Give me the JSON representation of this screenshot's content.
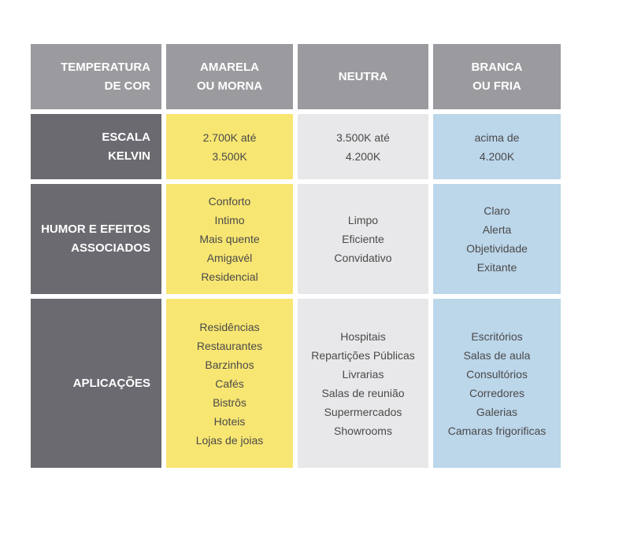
{
  "header": {
    "col0": [
      "TEMPERATURA",
      "DE COR"
    ],
    "col1": [
      "AMARELA",
      "OU MORNA"
    ],
    "col2": [
      "NEUTRA"
    ],
    "col3": [
      "BRANCA",
      "OU FRIA"
    ]
  },
  "rows": [
    {
      "label": [
        "ESCALA",
        "KELVIN"
      ],
      "warm": [
        "2.700K até",
        "3.500K"
      ],
      "neutral": [
        "3.500K até",
        "4.200K"
      ],
      "cool": [
        "acima de",
        "4.200K"
      ]
    },
    {
      "label": [
        "HUMOR E EFEITOS",
        "ASSOCIADOS"
      ],
      "warm": [
        "Conforto",
        "Intimo",
        "Mais quente",
        "Amigavél",
        "Residencial"
      ],
      "neutral": [
        "Limpo",
        "Eficiente",
        "Convidativo"
      ],
      "cool": [
        "Claro",
        "Alerta",
        "Objetividade",
        "Exitante"
      ]
    },
    {
      "label": [
        "APLICAÇÕES"
      ],
      "warm": [
        "Residências",
        "Restaurantes",
        "Barzinhos",
        "Cafés",
        "Bistrôs",
        "Hoteis",
        "Lojas de joias"
      ],
      "neutral": [
        "Hospitais",
        "Repartições Públicas",
        "Livrarias",
        "Salas de reunião",
        "Supermercados",
        "Showrooms"
      ],
      "cool": [
        "Escritórios",
        "Salas de aula",
        "Consultórios",
        "Corredores",
        "Galerias",
        "Camaras frigorificas"
      ]
    }
  ],
  "colors": {
    "header_gray": "#9b9a9f",
    "rowhead_gray": "#6b6a70",
    "warm_yellow": "#f8e672",
    "neutral_gray": "#e8e8ea",
    "cool_blue": "#bcd6ea"
  }
}
